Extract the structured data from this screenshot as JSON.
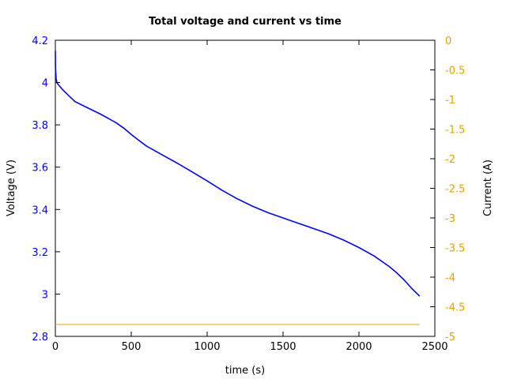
{
  "chart_data": {
    "type": "line",
    "title": "Total voltage and current vs time",
    "xlabel": "time (s)",
    "ylabel_left": "Voltage (V)",
    "ylabel_right": "Current (A)",
    "xlim": [
      0,
      2500
    ],
    "ylim_left": [
      2.8,
      4.2
    ],
    "ylim_right": [
      -5,
      0
    ],
    "xticks": [
      "0",
      "500",
      "1000",
      "1500",
      "2000",
      "2500"
    ],
    "yticks_left": [
      "2.8",
      "3",
      "3.2",
      "3.4",
      "3.6",
      "3.8",
      "4",
      "4.2"
    ],
    "yticks_right": [
      "-5",
      "-4.5",
      "-4",
      "-3.5",
      "-3",
      "-2.5",
      "-2",
      "-1.5",
      "-1",
      "-0.5",
      "0"
    ],
    "grid": false,
    "colors": {
      "voltage": "#0000ff",
      "current": "#e6a000",
      "left_axis": "#0000ff",
      "right_axis": "#e6a000"
    },
    "series": [
      {
        "axis": "left",
        "x": [
          0,
          1,
          5,
          10,
          20,
          50,
          100,
          130,
          200,
          300,
          350,
          400,
          450,
          500,
          550,
          600,
          700,
          800,
          900,
          1000,
          1100,
          1200,
          1300,
          1400,
          1500,
          1600,
          1700,
          1800,
          1900,
          2000,
          2100,
          2200,
          2250,
          2300,
          2350,
          2400
        ],
        "y": [
          4.15,
          4.07,
          4.02,
          4.0,
          3.99,
          3.965,
          3.93,
          3.91,
          3.885,
          3.85,
          3.83,
          3.81,
          3.785,
          3.755,
          3.727,
          3.7,
          3.66,
          3.62,
          3.578,
          3.535,
          3.49,
          3.45,
          3.415,
          3.385,
          3.36,
          3.335,
          3.31,
          3.285,
          3.255,
          3.22,
          3.18,
          3.13,
          3.1,
          3.065,
          3.025,
          2.99
        ]
      },
      {
        "axis": "right",
        "x": [
          0,
          2400
        ],
        "y": [
          -4.8,
          -4.8
        ]
      }
    ]
  }
}
